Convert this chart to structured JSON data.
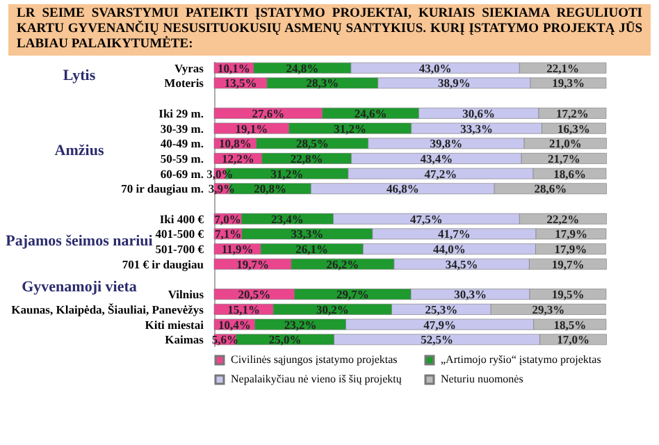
{
  "chart_data": {
    "type": "bar",
    "orientation": "horizontal",
    "stacked": true,
    "legend": "bottom",
    "tick_labels": "y",
    "title": "LR SEIME SVARSTYMUI PATEIKTI ĮSTATYMO PROJEKTAI, KURIAIS SIEKIAMA REGULIUOTI KARTU GYVENANČIŲ NESUSITUOKUSIŲ ASMENŲ SANTYKIUS. KURĮ ĮSTATYMO PROJEKTĄ JŪS LABIAU PALAIKYTUMĖTE:",
    "categories": [
      "Vyras",
      "Moteris",
      null,
      "Iki 29 m.",
      "30-39 m.",
      "40-49 m.",
      "50-59 m.",
      "60-69 m.",
      "70 ir daugiau m.",
      null,
      "Iki 400 €",
      "401-500 €",
      "501-700 €",
      "701 € ir daugiau",
      null,
      "Vilnius",
      "Kaunas, Klaipėda, Šiauliai, Panevėžys",
      "Kiti miestai",
      "Kaimas"
    ],
    "xlim": [
      0,
      100
    ],
    "annotations": [
      "Lytis",
      "Amžius",
      "Pajamos šeimos nariui",
      "Gyvenamoji vieta"
    ],
    "series": [
      {
        "name": "Civilinės sąjungos įstatymo projektas",
        "color": "#e9468e",
        "values": [
          10.1,
          13.5,
          null,
          27.6,
          19.1,
          10.8,
          12.2,
          3.0,
          3.9,
          null,
          7.0,
          7.1,
          11.9,
          19.7,
          null,
          20.5,
          15.1,
          10.4,
          5.6
        ],
        "value_labels": [
          "10,1%",
          "13,5%",
          null,
          "27,6%",
          "19,1%",
          "10,8%",
          "12,2%",
          "3,0%",
          "3,9%",
          null,
          "7,0%",
          "7,1%",
          "11,9%",
          "19,7%",
          null,
          "20,5%",
          "15,1%",
          "10,4%",
          "5,6%"
        ]
      },
      {
        "name": "„Artimojo ryšio“ įstatymo projektas",
        "color": "#1e9a2e",
        "values": [
          24.8,
          28.3,
          null,
          24.6,
          31.2,
          28.5,
          22.8,
          31.2,
          20.8,
          null,
          23.4,
          33.3,
          26.1,
          26.2,
          null,
          29.7,
          30.2,
          23.2,
          25.0
        ],
        "value_labels": [
          "24,8%",
          "28,3%",
          null,
          "24,6%",
          "31,2%",
          "28,5%",
          "22,8%",
          "31,2%",
          "20,8%",
          null,
          "23,4%",
          "33,3%",
          "26,1%",
          "26,2%",
          null,
          "29,7%",
          "30,2%",
          "23,2%",
          "25,0%"
        ]
      },
      {
        "name": "Nepalaikyčiau nė vieno iš šių projektų",
        "color": "#c6c6ee",
        "values": [
          43.0,
          38.9,
          null,
          30.6,
          33.3,
          39.8,
          43.4,
          47.2,
          46.8,
          null,
          47.5,
          41.7,
          44.0,
          34.5,
          null,
          30.3,
          25.3,
          47.9,
          52.5
        ],
        "value_labels": [
          "43,0%",
          "38,9%",
          null,
          "30,6%",
          "33,3%",
          "39,8%",
          "43,4%",
          "47,2%",
          "46,8%",
          null,
          "47,5%",
          "41,7%",
          "44,0%",
          "34,5%",
          null,
          "30,3%",
          "25,3%",
          "47,9%",
          "52,5%"
        ]
      },
      {
        "name": "Neturiu nuomonės",
        "color": "#b9b9b9",
        "values": [
          22.1,
          19.3,
          null,
          17.2,
          16.3,
          21.0,
          21.7,
          18.6,
          28.6,
          null,
          22.2,
          17.9,
          17.9,
          19.7,
          null,
          19.5,
          29.3,
          18.5,
          17.0
        ],
        "value_labels": [
          "22,1%",
          "19,3%",
          null,
          "17,2%",
          "16,3%",
          "21,0%",
          "21,7%",
          "18,6%",
          "28,6%",
          null,
          "22,2%",
          "17,9%",
          "17,9%",
          "19,7%",
          null,
          "19,5%",
          "29,3%",
          "18,5%",
          "17,0%"
        ]
      }
    ]
  }
}
